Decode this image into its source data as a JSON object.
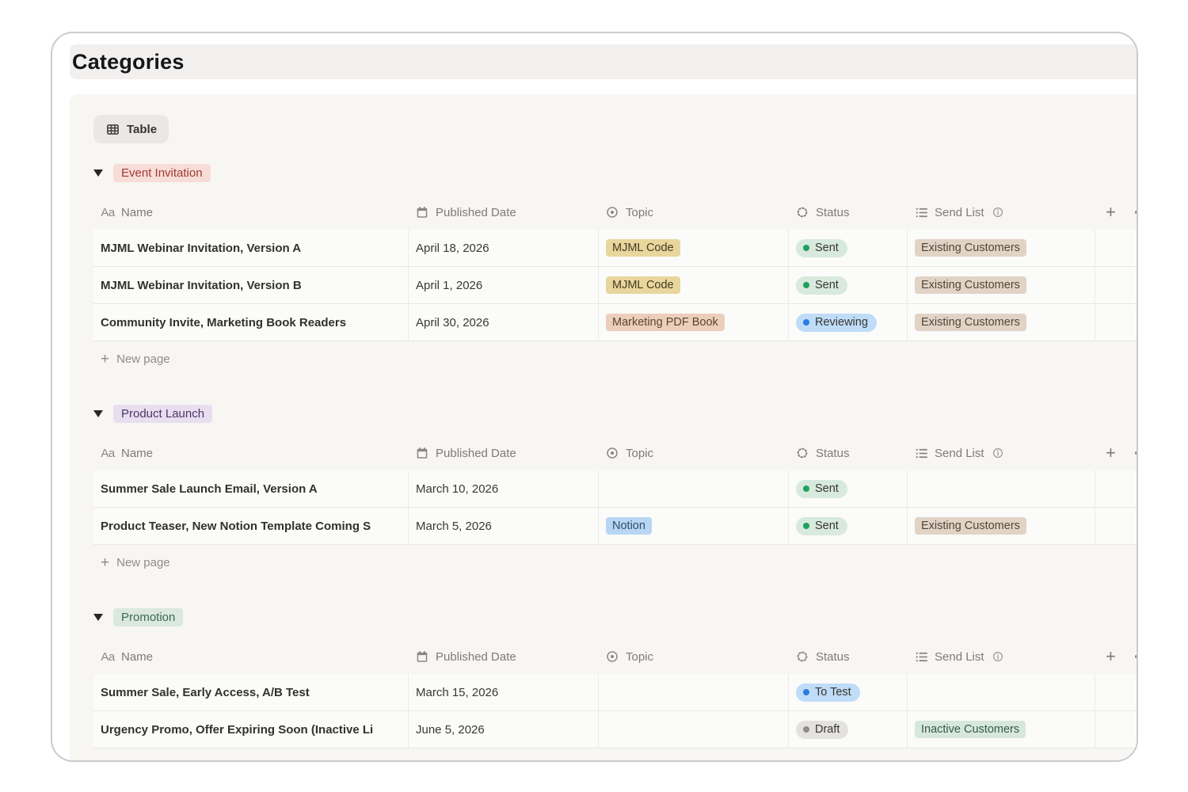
{
  "page": {
    "title": "Categories"
  },
  "toolbar": {
    "view_label": "Table"
  },
  "table": {
    "columns": [
      {
        "key": "name",
        "label": "Name",
        "icon": "text-icon"
      },
      {
        "key": "date",
        "label": "Published Date",
        "icon": "calendar-icon"
      },
      {
        "key": "topic",
        "label": "Topic",
        "icon": "select-icon"
      },
      {
        "key": "status",
        "label": "Status",
        "icon": "status-icon"
      },
      {
        "key": "send_list",
        "label": "Send List",
        "icon": "list-icon",
        "info_icon": true
      }
    ],
    "add_property_label": "+",
    "new_page_label": "New page"
  },
  "palette": {
    "pink": {
      "bg": "#f8dcd8",
      "text": "#9f3a33"
    },
    "purple": {
      "bg": "#e8def0",
      "text": "#4c3666"
    },
    "green_badge": {
      "bg": "#dbe8de",
      "text": "#3a6a52"
    },
    "yellow_tag": {
      "bg": "#e8d69c",
      "text": "#473a22"
    },
    "brown_tag": {
      "bg": "#eccfba",
      "text": "#5d4432"
    },
    "blue_tag": {
      "bg": "#b8d6f2",
      "text": "#2f4f6f"
    },
    "tan_tag": {
      "bg": "#e2d3c7",
      "text": "#554538"
    },
    "ltgreen_tag": {
      "bg": "#d8e7dc",
      "text": "#2f5d45"
    },
    "status_green": {
      "bg": "#d8e9dd",
      "dot": "#21a05f"
    },
    "status_blue": {
      "bg": "#bfdcf8",
      "dot": "#2a7ce0"
    },
    "status_gray": {
      "bg": "#e3e2df",
      "dot": "#8e8d89"
    }
  },
  "groups": [
    {
      "name": "Event Invitation",
      "color": "pink",
      "rows": [
        {
          "name": "MJML Webinar Invitation, Version A",
          "date": "April 18, 2026",
          "topic": {
            "label": "MJML Code",
            "color": "yellow_tag"
          },
          "status": {
            "label": "Sent",
            "color": "status_green"
          },
          "send_list": {
            "label": "Existing Customers",
            "color": "tan_tag"
          }
        },
        {
          "name": "MJML Webinar Invitation, Version B",
          "date": "April 1, 2026",
          "topic": {
            "label": "MJML Code",
            "color": "yellow_tag"
          },
          "status": {
            "label": "Sent",
            "color": "status_green"
          },
          "send_list": {
            "label": "Existing Customers",
            "color": "tan_tag"
          }
        },
        {
          "name": "Community Invite, Marketing Book Readers",
          "date": "April 30, 2026",
          "topic": {
            "label": "Marketing PDF Book",
            "color": "brown_tag"
          },
          "status": {
            "label": "Reviewing",
            "color": "status_blue"
          },
          "send_list": {
            "label": "Existing Customers",
            "color": "tan_tag"
          }
        }
      ]
    },
    {
      "name": "Product Launch",
      "color": "purple",
      "rows": [
        {
          "name": "Summer Sale Launch Email, Version A",
          "date": "March 10, 2026",
          "topic": null,
          "status": {
            "label": "Sent",
            "color": "status_green"
          },
          "send_list": null
        },
        {
          "name": "Product Teaser, New Notion Template Coming S",
          "date": "March 5, 2026",
          "topic": {
            "label": "Notion",
            "color": "blue_tag"
          },
          "status": {
            "label": "Sent",
            "color": "status_green"
          },
          "send_list": {
            "label": "Existing Customers",
            "color": "tan_tag"
          }
        }
      ]
    },
    {
      "name": "Promotion",
      "color": "green_badge",
      "rows": [
        {
          "name": "Summer Sale, Early Access, A/B Test",
          "date": "March 15, 2026",
          "topic": null,
          "status": {
            "label": "To Test",
            "color": "status_blue"
          },
          "send_list": null
        },
        {
          "name": "Urgency Promo, Offer Expiring Soon (Inactive Li",
          "date": "June 5, 2026",
          "topic": null,
          "status": {
            "label": "Draft",
            "color": "status_gray"
          },
          "send_list": {
            "label": "Inactive Customers",
            "color": "ltgreen_tag"
          }
        }
      ]
    }
  ]
}
